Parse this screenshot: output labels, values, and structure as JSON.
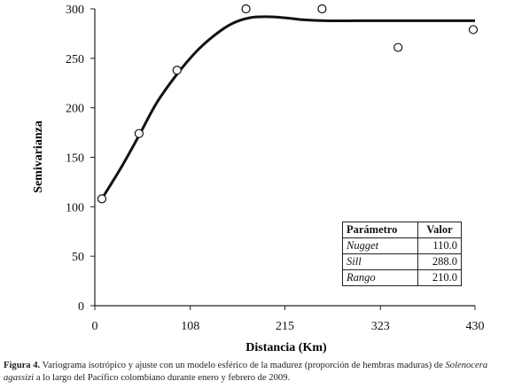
{
  "chart_data": {
    "type": "scatter",
    "xlabel": "Distancia (Km)",
    "ylabel": "Semivarianza",
    "xlim": [
      0,
      430
    ],
    "ylim": [
      0,
      300
    ],
    "xticks": [
      "0",
      "108",
      "215",
      "323",
      "430"
    ],
    "xtick_values": [
      0,
      108,
      215,
      323,
      430
    ],
    "yticks": [
      "0",
      "50",
      "100",
      "150",
      "200",
      "250",
      "300"
    ],
    "ytick_values": [
      0,
      50,
      100,
      150,
      200,
      250,
      300
    ],
    "grid": false,
    "points": [
      {
        "x": 8,
        "y": 108
      },
      {
        "x": 50,
        "y": 174
      },
      {
        "x": 93,
        "y": 238
      },
      {
        "x": 171,
        "y": 300
      },
      {
        "x": 257,
        "y": 300
      },
      {
        "x": 343,
        "y": 261
      },
      {
        "x": 428,
        "y": 279
      }
    ],
    "fit_curve": [
      {
        "x": 8,
        "y": 108
      },
      {
        "x": 30,
        "y": 140
      },
      {
        "x": 50,
        "y": 172
      },
      {
        "x": 70,
        "y": 205
      },
      {
        "x": 93,
        "y": 234
      },
      {
        "x": 115,
        "y": 257
      },
      {
        "x": 135,
        "y": 273
      },
      {
        "x": 155,
        "y": 285
      },
      {
        "x": 175,
        "y": 291
      },
      {
        "x": 195,
        "y": 292
      },
      {
        "x": 215,
        "y": 291
      },
      {
        "x": 235,
        "y": 289
      },
      {
        "x": 260,
        "y": 288
      },
      {
        "x": 300,
        "y": 288
      },
      {
        "x": 360,
        "y": 288
      },
      {
        "x": 430,
        "y": 288
      }
    ],
    "table": {
      "headers": [
        "Parámetro",
        "Valor"
      ],
      "rows": [
        [
          "Nugget",
          "110.0"
        ],
        [
          "Sill",
          "288.0"
        ],
        [
          "Rango",
          "210.0"
        ]
      ]
    },
    "colors": {
      "curve": "#111111",
      "marker": "#111111",
      "axis": "#222222"
    }
  },
  "caption": {
    "label": "Figura 4.",
    "text_before": "Variograma isotrópico y ajuste con un modelo esférico de la madurez (proporción de hembras maduras) de",
    "species": "Solenocera agassizi",
    "text_after": "a lo largo del Pacífico colombiano durante enero y febrero de 2009."
  }
}
